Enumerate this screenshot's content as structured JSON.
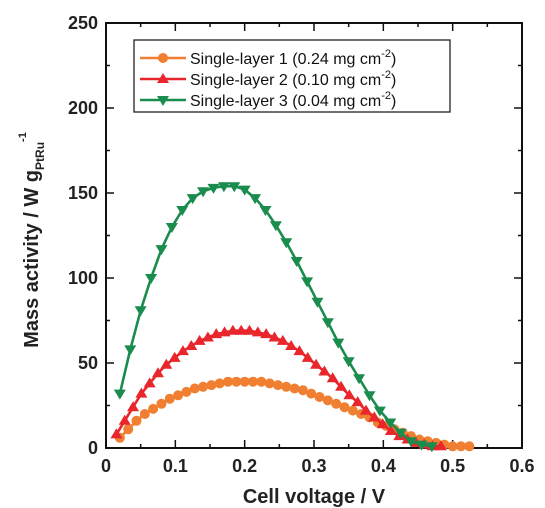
{
  "chart_data": {
    "type": "line",
    "xlabel": "Cell voltage / V",
    "ylabel": {
      "main": "Mass activity / W g",
      "subscript": "PtRu",
      "superscript": "-1"
    },
    "xlim": [
      0,
      0.6
    ],
    "ylim": [
      0,
      250
    ],
    "xticks": [
      "0",
      "0.1",
      "0.2",
      "0.3",
      "0.4",
      "0.5",
      "0.6"
    ],
    "yticks": [
      "0",
      "50",
      "100",
      "150",
      "200",
      "250"
    ],
    "grid": false,
    "legend_position": "top-right",
    "series": [
      {
        "name": "Single-layer 1 (0.24 mg cm",
        "name_sup": "-2",
        "name_end": ")",
        "color": "#f07f31",
        "marker": "circle",
        "x": [
          0.02,
          0.032,
          0.044,
          0.056,
          0.068,
          0.08,
          0.092,
          0.104,
          0.116,
          0.128,
          0.14,
          0.152,
          0.164,
          0.176,
          0.188,
          0.2,
          0.212,
          0.224,
          0.236,
          0.248,
          0.26,
          0.272,
          0.284,
          0.296,
          0.308,
          0.32,
          0.332,
          0.344,
          0.356,
          0.368,
          0.38,
          0.392,
          0.404,
          0.416,
          0.428,
          0.44,
          0.452,
          0.464,
          0.476,
          0.488,
          0.5,
          0.512,
          0.524
        ],
        "y": [
          6,
          11,
          16,
          20,
          23,
          26,
          29,
          31,
          33,
          35,
          36,
          37,
          38,
          39,
          39,
          39,
          39,
          39,
          38,
          37,
          36,
          35,
          34,
          32,
          30,
          28,
          26,
          24,
          22,
          20,
          18,
          15,
          13,
          11,
          9,
          7,
          5,
          4,
          3,
          2,
          1,
          1,
          1
        ]
      },
      {
        "name": "Single-layer 2 (0.10 mg cm",
        "name_sup": "-2",
        "name_end": ")",
        "color": "#e8262b",
        "marker": "triangle-up",
        "x": [
          0.015,
          0.027,
          0.039,
          0.051,
          0.063,
          0.075,
          0.087,
          0.099,
          0.111,
          0.123,
          0.135,
          0.147,
          0.159,
          0.171,
          0.183,
          0.195,
          0.207,
          0.219,
          0.231,
          0.243,
          0.255,
          0.267,
          0.279,
          0.291,
          0.303,
          0.315,
          0.327,
          0.339,
          0.351,
          0.363,
          0.375,
          0.387,
          0.399,
          0.411,
          0.423,
          0.435,
          0.447,
          0.459,
          0.471,
          0.483
        ],
        "y": [
          8,
          16,
          24,
          32,
          38,
          44,
          49,
          53,
          57,
          60,
          63,
          65,
          67,
          68,
          69,
          69,
          69,
          68,
          67,
          65,
          63,
          60,
          57,
          53,
          49,
          45,
          41,
          36,
          31,
          27,
          22,
          18,
          14,
          10,
          7,
          5,
          3,
          2,
          1,
          1
        ]
      },
      {
        "name": "Single-layer 3 (0.04 mg cm",
        "name_sup": "-2",
        "name_end": ")",
        "color": "#1a8c4d",
        "marker": "triangle-down",
        "x": [
          0.02,
          0.035,
          0.05,
          0.065,
          0.08,
          0.095,
          0.11,
          0.125,
          0.14,
          0.155,
          0.17,
          0.185,
          0.2,
          0.215,
          0.23,
          0.245,
          0.26,
          0.275,
          0.29,
          0.305,
          0.32,
          0.335,
          0.35,
          0.365,
          0.38,
          0.395,
          0.41,
          0.425,
          0.44,
          0.455,
          0.47
        ],
        "y": [
          32,
          58,
          81,
          100,
          117,
          130,
          140,
          147,
          151,
          153,
          154,
          154,
          152,
          147,
          140,
          131,
          121,
          110,
          98,
          86,
          74,
          62,
          51,
          41,
          31,
          22,
          15,
          9,
          4,
          2,
          1
        ]
      }
    ]
  }
}
